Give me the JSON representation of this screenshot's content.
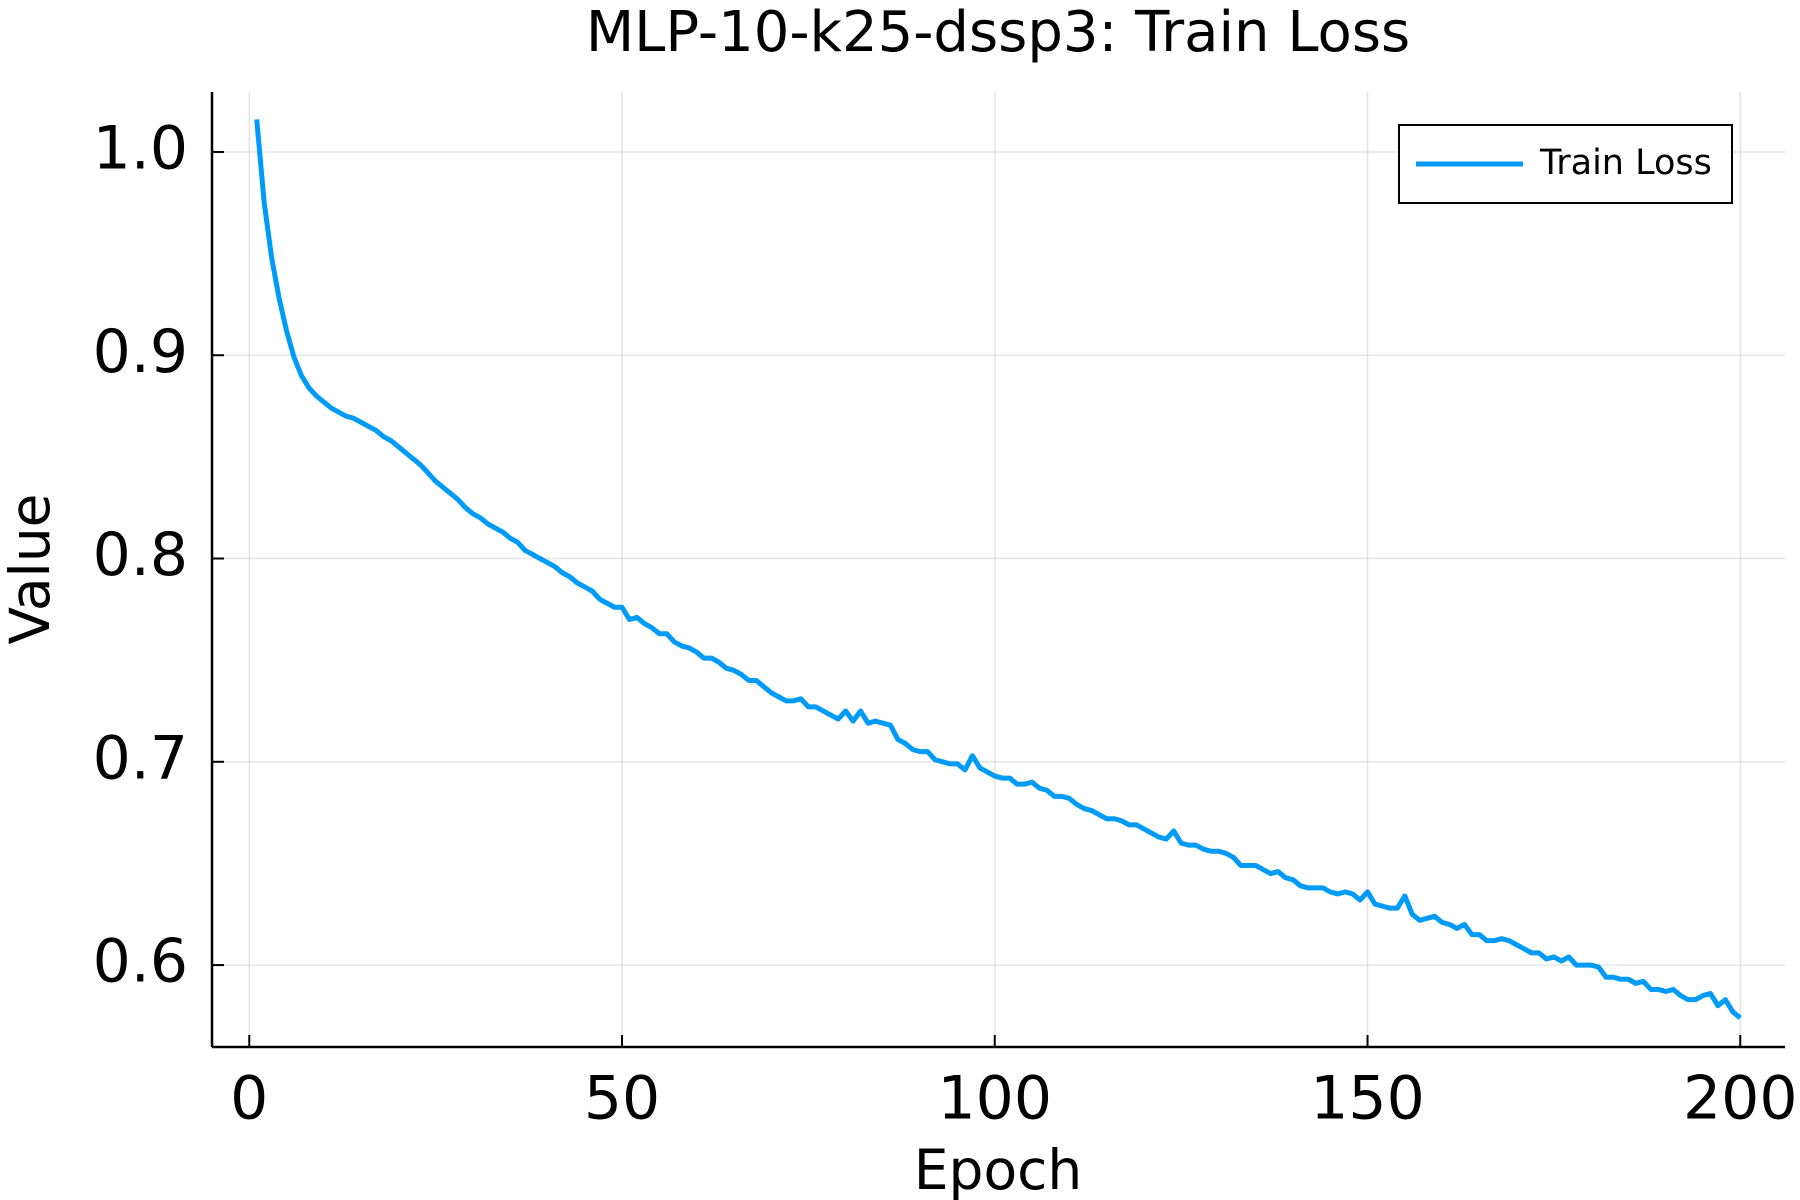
{
  "chart_data": {
    "type": "line",
    "title": "MLP-10-k25-dssp3: Train Loss",
    "x_label": "Epoch",
    "y_label": "Value",
    "x": [
      1,
      2,
      3,
      4,
      5,
      6,
      7,
      8,
      9,
      10,
      11,
      12,
      13,
      14,
      15,
      16,
      17,
      18,
      19,
      20,
      21,
      22,
      23,
      24,
      25,
      26,
      27,
      28,
      29,
      30,
      31,
      32,
      33,
      34,
      35,
      36,
      37,
      38,
      39,
      40,
      41,
      42,
      43,
      44,
      45,
      46,
      47,
      48,
      49,
      50,
      51,
      52,
      53,
      54,
      55,
      56,
      57,
      58,
      59,
      60,
      61,
      62,
      63,
      64,
      65,
      66,
      67,
      68,
      69,
      70,
      71,
      72,
      73,
      74,
      75,
      76,
      77,
      78,
      79,
      80,
      81,
      82,
      83,
      84,
      85,
      86,
      87,
      88,
      89,
      90,
      91,
      92,
      93,
      94,
      95,
      96,
      97,
      98,
      99,
      100,
      101,
      102,
      103,
      104,
      105,
      106,
      107,
      108,
      109,
      110,
      111,
      112,
      113,
      114,
      115,
      116,
      117,
      118,
      119,
      120,
      121,
      122,
      123,
      124,
      125,
      126,
      127,
      128,
      129,
      130,
      131,
      132,
      133,
      134,
      135,
      136,
      137,
      138,
      139,
      140,
      141,
      142,
      143,
      144,
      145,
      146,
      147,
      148,
      149,
      150,
      151,
      152,
      153,
      154,
      155,
      156,
      157,
      158,
      159,
      160,
      161,
      162,
      163,
      164,
      165,
      166,
      167,
      168,
      169,
      170,
      171,
      172,
      173,
      174,
      175,
      176,
      177,
      178,
      179,
      180,
      181,
      182,
      183,
      184,
      185,
      186,
      187,
      188,
      189,
      190,
      191,
      192,
      193,
      194,
      195,
      196,
      197,
      198,
      199,
      200
    ],
    "series": [
      {
        "name": "Train Loss",
        "color": "#009af9",
        "values": [
          1.016,
          0.975,
          0.948,
          0.928,
          0.912,
          0.899,
          0.89,
          0.884,
          0.88,
          0.877,
          0.874,
          0.872,
          0.87,
          0.869,
          0.867,
          0.865,
          0.863,
          0.86,
          0.858,
          0.855,
          0.852,
          0.849,
          0.846,
          0.842,
          0.838,
          0.835,
          0.832,
          0.829,
          0.825,
          0.822,
          0.82,
          0.817,
          0.815,
          0.813,
          0.81,
          0.808,
          0.804,
          0.802,
          0.8,
          0.798,
          0.796,
          0.793,
          0.791,
          0.788,
          0.786,
          0.784,
          0.78,
          0.778,
          0.776,
          0.776,
          0.77,
          0.771,
          0.768,
          0.766,
          0.763,
          0.763,
          0.759,
          0.757,
          0.756,
          0.754,
          0.751,
          0.751,
          0.749,
          0.746,
          0.745,
          0.743,
          0.74,
          0.74,
          0.737,
          0.734,
          0.732,
          0.73,
          0.73,
          0.731,
          0.727,
          0.727,
          0.725,
          0.723,
          0.721,
          0.725,
          0.72,
          0.725,
          0.719,
          0.72,
          0.719,
          0.718,
          0.711,
          0.709,
          0.706,
          0.705,
          0.705,
          0.701,
          0.7,
          0.699,
          0.699,
          0.696,
          0.703,
          0.697,
          0.695,
          0.693,
          0.692,
          0.692,
          0.689,
          0.689,
          0.69,
          0.687,
          0.686,
          0.683,
          0.683,
          0.682,
          0.679,
          0.677,
          0.676,
          0.674,
          0.672,
          0.672,
          0.671,
          0.669,
          0.669,
          0.667,
          0.665,
          0.663,
          0.662,
          0.666,
          0.66,
          0.659,
          0.659,
          0.657,
          0.656,
          0.656,
          0.655,
          0.653,
          0.649,
          0.649,
          0.649,
          0.647,
          0.645,
          0.646,
          0.643,
          0.642,
          0.639,
          0.638,
          0.638,
          0.638,
          0.636,
          0.635,
          0.636,
          0.635,
          0.632,
          0.636,
          0.63,
          0.629,
          0.628,
          0.628,
          0.634,
          0.625,
          0.622,
          0.623,
          0.624,
          0.621,
          0.62,
          0.618,
          0.62,
          0.615,
          0.615,
          0.612,
          0.612,
          0.613,
          0.612,
          0.61,
          0.608,
          0.606,
          0.606,
          0.603,
          0.604,
          0.602,
          0.604,
          0.6,
          0.6,
          0.6,
          0.599,
          0.594,
          0.594,
          0.593,
          0.593,
          0.591,
          0.592,
          0.588,
          0.588,
          0.587,
          0.588,
          0.585,
          0.583,
          0.583,
          0.585,
          0.586,
          0.58,
          0.583,
          0.577,
          0.574
        ]
      }
    ],
    "xlim": [
      -5,
      206
    ],
    "ylim": [
      0.5597,
      1.0295
    ],
    "xticks": [
      0,
      50,
      100,
      150,
      200
    ],
    "yticks": [
      0.6,
      0.7,
      0.8,
      0.9,
      {
        "value": 1,
        "label": "1.0"
      }
    ],
    "grid": true,
    "legend": "top-right"
  }
}
